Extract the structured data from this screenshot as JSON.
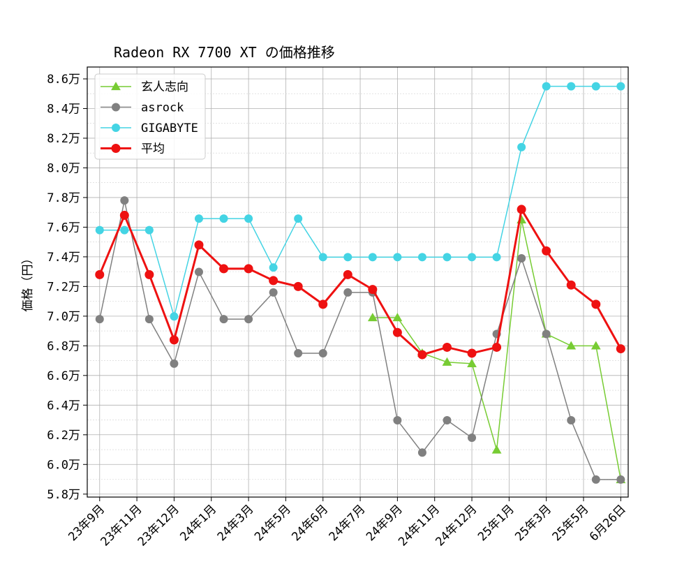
{
  "chart_data": {
    "type": "line",
    "title": "Radeon RX 7700 XT の価格推移",
    "xlabel": "",
    "ylabel": "価格（円）",
    "ylim": [
      57800,
      86800
    ],
    "y_ticks": [
      58000,
      60000,
      62000,
      64000,
      66000,
      68000,
      70000,
      72000,
      74000,
      76000,
      78000,
      80000,
      82000,
      84000,
      86000
    ],
    "y_tick_labels": [
      "5.8万",
      "6.0万",
      "6.2万",
      "6.4万",
      "6.6万",
      "6.8万",
      "7.0万",
      "7.2万",
      "7.4万",
      "7.6万",
      "7.8万",
      "8.0万",
      "8.2万",
      "8.4万",
      "8.6万"
    ],
    "x_tick_labels": [
      "23年9月",
      "23年11月",
      "23年12月",
      "24年1月",
      "24年3月",
      "24年5月",
      "24年6月",
      "24年7月",
      "24年9月",
      "24年11月",
      "24年12月",
      "25年1月",
      "25年3月",
      "25年5月",
      "6月26日"
    ],
    "grid": true,
    "legend_position": "top-left",
    "x_range": [
      -0.5,
      21.3
    ],
    "x_tick_positions": [
      0,
      1.5,
      3,
      4.5,
      6,
      7.5,
      9,
      10.5,
      12,
      13.5,
      15,
      16.5,
      18,
      19.5,
      21
    ],
    "series": [
      {
        "name": "玄人志向",
        "color": "#77cc33",
        "marker": "triangle",
        "line_width": 1.5,
        "x": [
          11,
          12,
          13,
          14,
          15,
          16,
          17,
          18,
          19,
          20,
          21
        ],
        "values": [
          69900,
          69900,
          67500,
          66900,
          66800,
          60980,
          76500,
          68800,
          68000,
          68000,
          58980
        ]
      },
      {
        "name": "asrock",
        "color": "#808080",
        "marker": "circle",
        "line_width": 1.5,
        "x": [
          0,
          1,
          2,
          3,
          4,
          5,
          6,
          7,
          8,
          9,
          10,
          11,
          12,
          13,
          14,
          15,
          16,
          17,
          18,
          19,
          20,
          21
        ],
        "values": [
          69800,
          77800,
          69800,
          66800,
          72980,
          69800,
          69800,
          71600,
          67500,
          67500,
          71600,
          71600,
          62980,
          60800,
          62980,
          61800,
          68800,
          73900,
          68800,
          62980,
          58980,
          58980
        ]
      },
      {
        "name": "GIGABYTE",
        "color": "#44d4e4",
        "marker": "circle",
        "line_width": 1.5,
        "x": [
          0,
          1,
          2,
          3,
          4,
          5,
          6,
          7,
          8,
          9,
          10,
          11,
          12,
          13,
          14,
          15,
          16,
          17,
          18,
          19,
          20,
          21
        ],
        "values": [
          75800,
          75800,
          75800,
          69980,
          76580,
          76580,
          76580,
          73280,
          76580,
          73980,
          73980,
          73980,
          73980,
          73980,
          73980,
          73980,
          73980,
          81400,
          85500,
          85500,
          85500,
          85500
        ]
      },
      {
        "name": "平均",
        "color": "#ee1111",
        "marker": "circle",
        "line_width": 3,
        "x": [
          0,
          1,
          2,
          3,
          4,
          5,
          6,
          7,
          8,
          9,
          10,
          11,
          12,
          13,
          14,
          15,
          16,
          17,
          18,
          19,
          20,
          21
        ],
        "values": [
          72800,
          76800,
          72800,
          68400,
          74800,
          73200,
          73200,
          72400,
          72000,
          70800,
          72800,
          71800,
          68900,
          67400,
          67900,
          67500,
          67900,
          77200,
          74400,
          72100,
          70800,
          67800
        ]
      }
    ]
  }
}
